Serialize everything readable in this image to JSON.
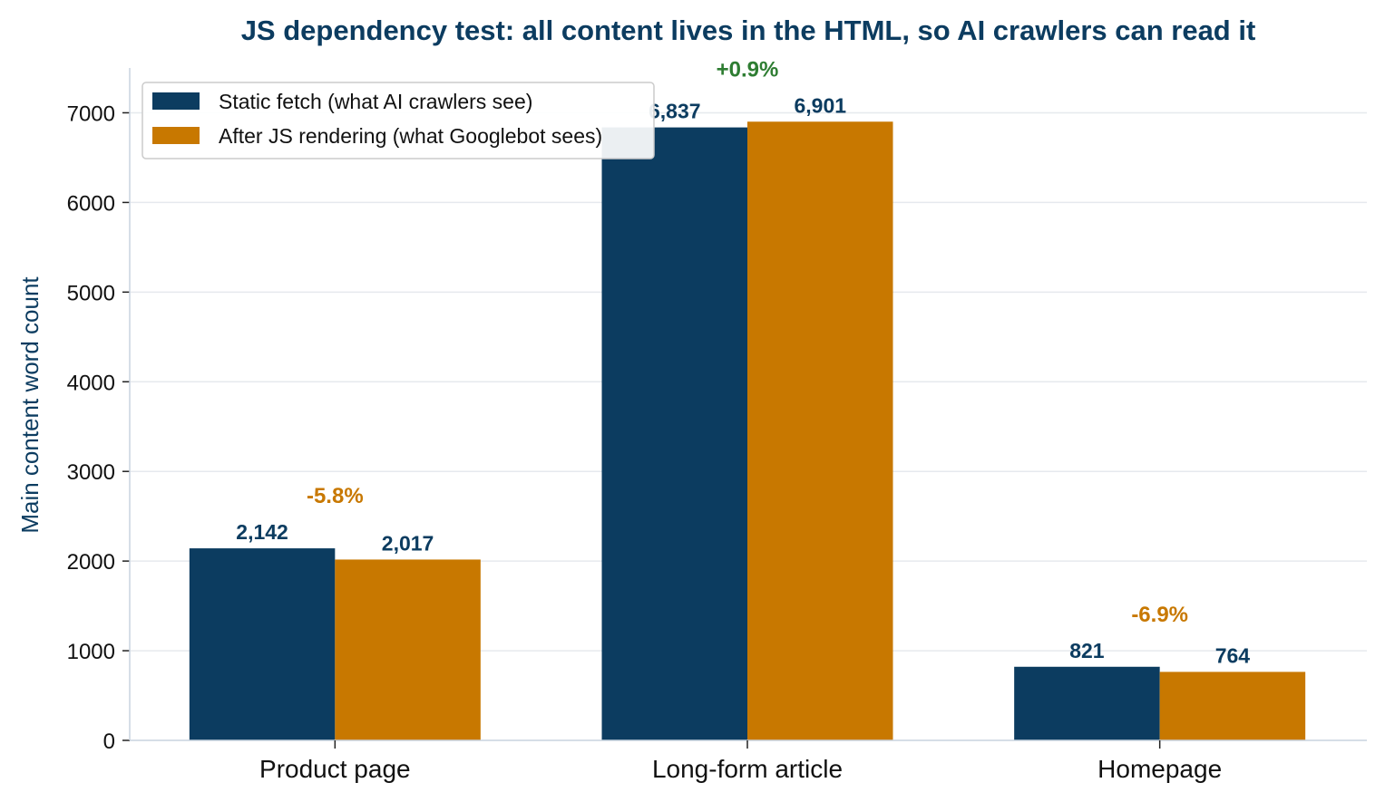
{
  "chart_data": {
    "type": "bar",
    "title": "JS dependency test: all content lives in the HTML, so AI crawlers can read it",
    "xlabel": "",
    "ylabel": "Main content word count",
    "categories": [
      "Product page",
      "Long-form article",
      "Homepage"
    ],
    "series": [
      {
        "name": "Static fetch (what AI crawlers see)",
        "values": [
          2142,
          6837,
          821
        ],
        "labels": [
          "2,142",
          "6,837",
          "821"
        ],
        "color": "#0c3c60"
      },
      {
        "name": "After JS rendering (what Googlebot sees)",
        "values": [
          2017,
          6901,
          764
        ],
        "labels": [
          "2,017",
          "6,901",
          "764"
        ],
        "color": "#c87800"
      }
    ],
    "deltas": [
      {
        "text": "-5.8%",
        "color": "#c87800"
      },
      {
        "text": "+0.9%",
        "color": "#2e7d32"
      },
      {
        "text": "-6.9%",
        "color": "#c87800"
      }
    ],
    "yticks": [
      0,
      1000,
      2000,
      3000,
      4000,
      5000,
      6000,
      7000
    ],
    "ylim": [
      0,
      7500
    ],
    "grid": true,
    "legend_position": "top-left",
    "title_color": "#0c3c60",
    "ylabel_color": "#0c3c60"
  }
}
